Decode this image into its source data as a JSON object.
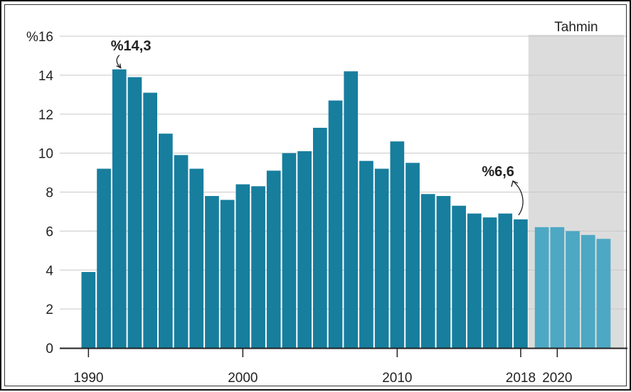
{
  "chart_data": {
    "type": "bar",
    "title": "",
    "xlabel": "",
    "ylabel": "",
    "ylim": [
      0,
      16
    ],
    "y_ticks": [
      "0",
      "2",
      "4",
      "6",
      "8",
      "10",
      "12",
      "14",
      "%16"
    ],
    "x_tick_labels": [
      {
        "year": 1990,
        "label": "1990"
      },
      {
        "year": 2000,
        "label": "2000"
      },
      {
        "year": 2010,
        "label": "2010"
      },
      {
        "year": 2018,
        "label": "2018"
      },
      {
        "year": 2020,
        "label": "2020"
      }
    ],
    "grid": true,
    "years": [
      1990,
      1991,
      1992,
      1993,
      1994,
      1995,
      1996,
      1997,
      1998,
      1999,
      2000,
      2001,
      2002,
      2003,
      2004,
      2005,
      2006,
      2007,
      2008,
      2009,
      2010,
      2011,
      2012,
      2013,
      2014,
      2015,
      2016,
      2017,
      2018,
      2019,
      2020,
      2021,
      2022,
      2023
    ],
    "values": [
      3.9,
      9.2,
      14.3,
      13.9,
      13.1,
      11.0,
      9.9,
      9.2,
      7.8,
      7.6,
      8.4,
      8.3,
      9.1,
      10.0,
      10.1,
      11.3,
      12.7,
      14.2,
      9.6,
      9.2,
      10.6,
      9.5,
      7.9,
      7.8,
      7.3,
      6.9,
      6.7,
      6.9,
      6.6,
      6.2,
      6.2,
      6.0,
      5.8,
      5.6
    ],
    "forecast_from_year": 2019,
    "forecast_label": "Tahmin",
    "annotations": [
      {
        "year": 1992,
        "text": "%14,3"
      },
      {
        "year": 2018,
        "text": "%6,6"
      }
    ],
    "colors": {
      "actual": "#177E9E",
      "forecast": "#4DA8C4",
      "forecast_band": "#DCDCDC",
      "grid": "#C8C8C8",
      "axis": "#222222"
    }
  }
}
